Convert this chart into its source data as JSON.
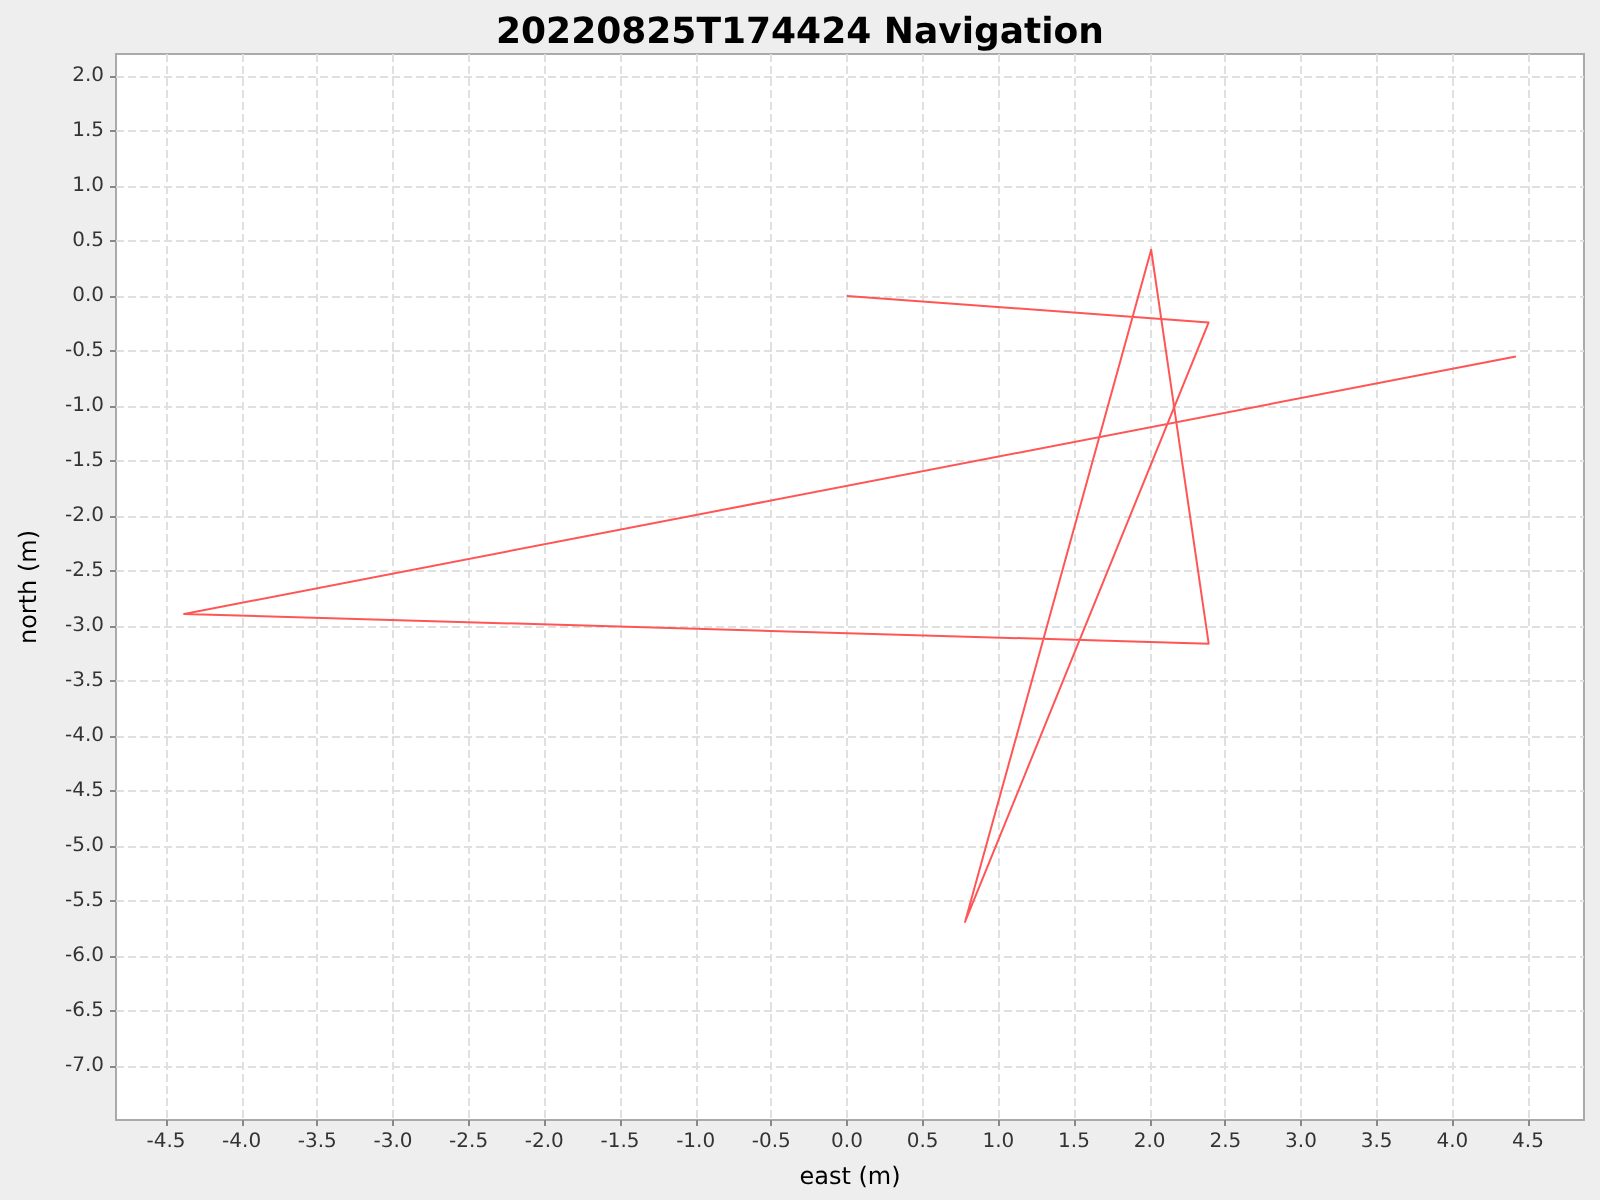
{
  "chart_data": {
    "type": "line",
    "title": "20220825T174424 Navigation",
    "xlabel": "east (m)",
    "ylabel": "north (m)",
    "x": [
      0,
      2.39,
      0.78,
      2.01,
      2.39,
      -4.38,
      4.42
    ],
    "series": [
      {
        "color": "#ff5555",
        "values": [
          0,
          -0.24,
          -5.69,
          0.42,
          -3.16,
          -2.89,
          -0.55
        ]
      }
    ],
    "xlim": [
      -4.83,
      4.87
    ],
    "xticks": [
      -4.5,
      {
        "value": -4,
        "label": "-4.0"
      },
      -3.5,
      {
        "value": -3,
        "label": "-3.0"
      },
      -2.5,
      {
        "value": -2,
        "label": "-2.0"
      },
      -1.5,
      {
        "value": -1,
        "label": "-1.0"
      },
      -0.5,
      {
        "value": 0,
        "label": "0.0"
      },
      0.5,
      {
        "value": 1,
        "label": "1.0"
      },
      1.5,
      {
        "value": 2,
        "label": "2.0"
      },
      2.5,
      {
        "value": 3,
        "label": "3.0"
      },
      3.5,
      {
        "value": 4,
        "label": "4.0"
      },
      4.5
    ],
    "ylim": [
      -7.49,
      2.2
    ],
    "yticks": [
      {
        "value": -7,
        "label": "-7.0"
      },
      -6.5,
      {
        "value": -6,
        "label": "-6.0"
      },
      -5.5,
      {
        "value": -5,
        "label": "-5.0"
      },
      -4.5,
      {
        "value": -4,
        "label": "-4.0"
      },
      -3.5,
      {
        "value": -3,
        "label": "-3.0"
      },
      -2.5,
      {
        "value": -2,
        "label": "-2.0"
      },
      -1.5,
      {
        "value": -1,
        "label": "-1.0"
      },
      -0.5,
      {
        "value": 0,
        "label": "0.0"
      },
      0.5,
      {
        "value": 1,
        "label": "1.0"
      },
      1.5,
      {
        "value": 2,
        "label": "2.0"
      }
    ],
    "grid": true,
    "marker": "none",
    "line_style": "solid"
  }
}
